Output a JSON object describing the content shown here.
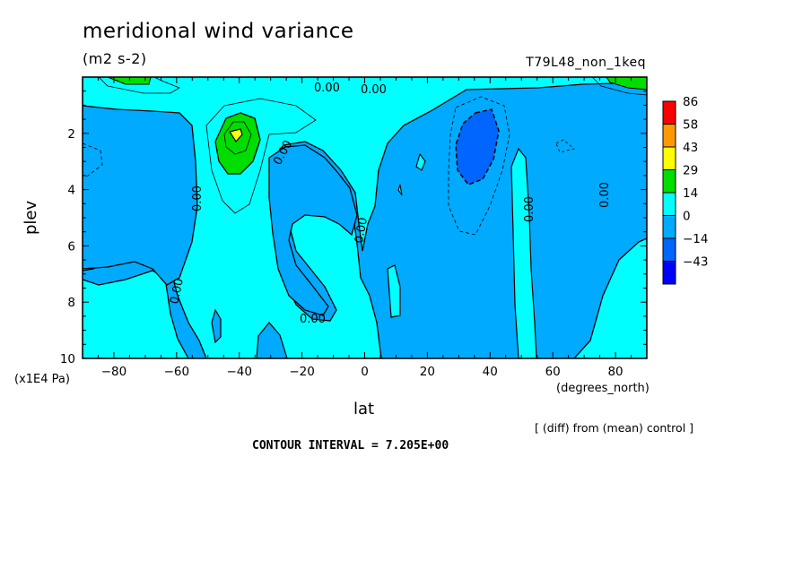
{
  "header": {
    "title": "meridional wind variance",
    "units": "(m2 s-2)",
    "run_label": "T79L48_non_1keq",
    "x_unit": "(degrees_north)",
    "y_unit": "(x1E4 Pa)",
    "x_axis_label": "lat",
    "y_axis_label": "plev",
    "diff_note": "[ (diff) from (mean) control ]",
    "contour_interval": "CONTOUR INTERVAL = 7.205E+00"
  },
  "chart_data": {
    "type": "heatmap",
    "title": "meridional wind variance",
    "subtitle": "(m2 s-2)",
    "xlabel": "lat",
    "ylabel": "plev",
    "x_unit": "(degrees_north)",
    "y_unit": "(x1E4 Pa)",
    "xlim": [
      -90,
      90
    ],
    "ylim": [
      0,
      10
    ],
    "y_inverted": true,
    "x_ticks": [
      -80,
      -60,
      -40,
      -20,
      0,
      20,
      40,
      60,
      80
    ],
    "x_tick_labels": [
      "−80",
      "−60",
      "−40",
      "−20",
      "0",
      "20",
      "40",
      "60",
      "80"
    ],
    "y_ticks": [
      2,
      4,
      6,
      8,
      10
    ],
    "y_tick_labels": [
      "2",
      "4",
      "6",
      "8",
      "10"
    ],
    "colorbar": {
      "labels": [
        "86",
        "58",
        "43",
        "29",
        "14",
        "0",
        "−14",
        "−43"
      ],
      "colors": [
        "#ff0000",
        "#ff9900",
        "#ffff00",
        "#00dd00",
        "#00ffff",
        "#00aaff",
        "#0066ff",
        "#0000ff"
      ]
    },
    "contour_labels": [
      "0.00",
      "0.00",
      "0.00",
      "0.00",
      "0.00",
      "0.00",
      "0.00",
      "0.00",
      "0.00"
    ],
    "features": [
      {
        "x": -40,
        "y": 2.2,
        "value": 29
      },
      {
        "x": 33,
        "y": 2.5,
        "value": -14
      }
    ]
  },
  "colors": {
    "level_neg": "#00aaff",
    "level_pos": "#00ffff",
    "level_14": "#00dd00",
    "level_29": "#ffff00",
    "level_neg14": "#0066ff"
  }
}
